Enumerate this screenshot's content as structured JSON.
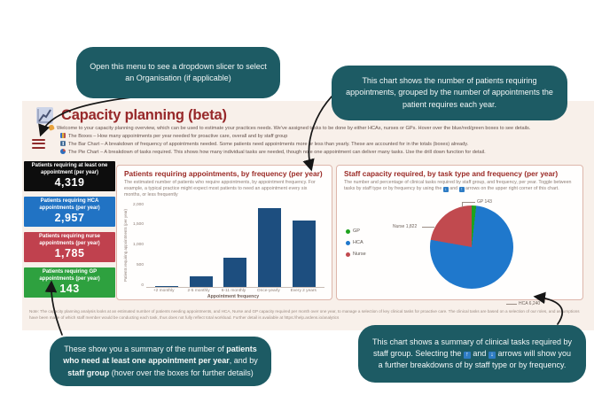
{
  "callouts": {
    "menu": {
      "text": "Open this menu to see a dropdown slicer to select an Organisation (if applicable)"
    },
    "bar": {
      "text": "This chart shows the number of patients requiring appointments, grouped by the number of appointments the patient requires each year."
    },
    "kpi": {
      "t1": "These show you a summary of the number of ",
      "b1": "patients who need at least one appointment per year",
      "t2": ", and by ",
      "b2": "staff group",
      "t3": " (hover over the boxes for further details)"
    },
    "pie": {
      "t1": "This chart shows a summary of clinical tasks required by staff group. Selecting the ",
      "up_icon": "↑",
      "t2": " and ",
      "down_icon": "↓",
      "t3": " arrows will show you a further breakdowns of by staff type or by frequency."
    }
  },
  "dashboard": {
    "title": "Capacity planning (beta)",
    "intro": [
      {
        "text": "Welcome to your capacity planning overview, which can be used to estimate your practices needs. We've assigned tasks to be done by either HCAs, nurses or GPs. Hover over the blue/red/green boxes to see details."
      },
      {
        "text": "The Boxes – How many appointments per year needed for proactive care, overall and by staff group"
      },
      {
        "text": "The Bar Chart – A breakdown of frequency of appointments needed. Some patients need appointments more or less than yearly. These are accounted for in the totals (boxes) already."
      },
      {
        "text": "The Pie Chart – A breakdown of tasks required. This shows how many individual tasks are needed, though note one appointment can deliver many tasks. Use the drill down function for detail."
      }
    ],
    "kpis": [
      {
        "label": "Patients requiring at least one appointment (per year)",
        "value": "4,319",
        "color": "#0d0d0d"
      },
      {
        "label": "Patients requiring HCA appointments (per year)",
        "value": "2,957",
        "color": "#2173c4"
      },
      {
        "label": "Patients requiring nurse appointments (per year)",
        "value": "1,785",
        "color": "#c0414e"
      },
      {
        "label": "Patients requiring GP appointments (per year)",
        "value": "143",
        "color": "#2ea13f"
      }
    ],
    "footnote": "Note: The capacity planning analysis looks at an estimated number of patients needing appointments, and HCA, Nurse and GP capacity required per month over one year, to manage a selection of key clinical tasks for proactive care. The clinical tasks are based on a selection of our roles, and assumptions have been made of which staff member would be conducting each task, thus does not fully reflect total workload. Further detail is available at https://help.ardens.io/analytics"
  },
  "chart_data": [
    {
      "type": "bar",
      "title": "Patients requiring appointments, by frequency (per year)",
      "subtitle": "The estimated number of patients who require appointments, by appointment frequency. For example, a typical practice might expect most patients to need an appointment every six months, or less frequently",
      "categories": [
        "+2 monthly",
        "2-5 monthly",
        "6-11 monthly",
        "Once-yearly",
        "Every 2 years"
      ],
      "values": [
        10,
        250,
        680,
        1860,
        1570
      ],
      "xlabel": "Appointment frequency",
      "ylabel": "Patients requiring appointments (per year)",
      "ylim": [
        0,
        2000
      ],
      "yticks": [
        "2,000",
        "1,500",
        "1,000",
        "500",
        "0"
      ],
      "bar_color": "#1d4e7f",
      "grid": false,
      "legend": "none"
    },
    {
      "type": "pie",
      "title": "Staff capacity required, by task type and frequency (per year)",
      "subtitle_t1": "The number and percentage of clinical tasks required by staff group, and frequency, per year. Toggle between tasks by staff type or by frequency by using the ",
      "subtitle_down_icon": "↓",
      "subtitle_t2": " and ",
      "subtitle_up_icon": "↑",
      "subtitle_t3": " arrows on the upper right corner of this chart.",
      "legend_position": "left",
      "slices": [
        {
          "label": "GP",
          "value": 143,
          "color": "#1ea21e"
        },
        {
          "label": "HCA",
          "value": 6240,
          "color": "#1f78cc"
        },
        {
          "label": "Nurse",
          "value": 1822,
          "color": "#c14a4f"
        }
      ],
      "legend": [
        {
          "name": "GP",
          "color": "#1ea21e"
        },
        {
          "name": "HCA",
          "color": "#1f78cc"
        },
        {
          "name": "Nurse",
          "color": "#c14a4f"
        }
      ],
      "callout_labels": {
        "gp": "GP 143",
        "nurse": "Nurse 1,822",
        "hca": "HCA 6,240"
      }
    }
  ]
}
